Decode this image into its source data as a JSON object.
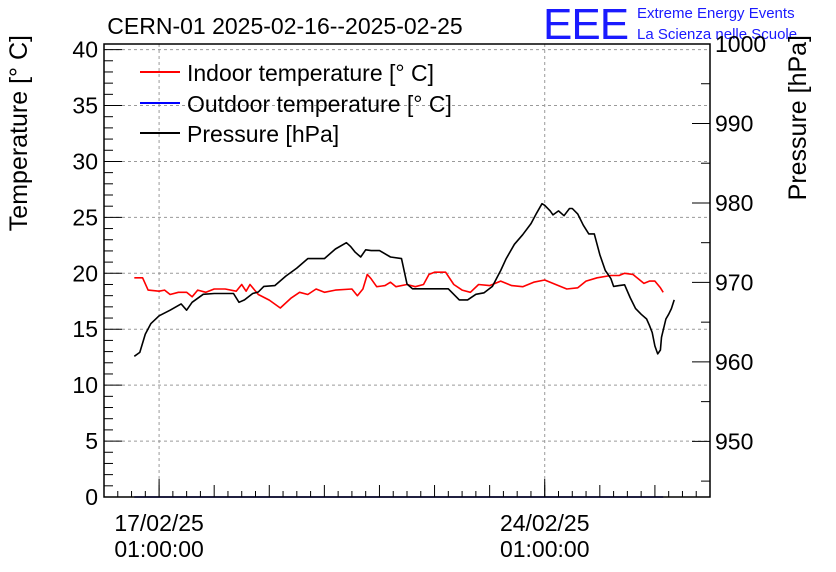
{
  "branding": {
    "logo_text": "EEE",
    "line1": "Extreme Energy Events",
    "line2": "La Scienza nelle Scuole",
    "color": "#1a1aff"
  },
  "chart_data": {
    "type": "line",
    "title": "CERN-01 2025-02-16--2025-02-25",
    "ylabel": "Temperature [° C]",
    "y2label": "Pressure [hPa]",
    "x_range_days": [
      -1.0,
      10.0
    ],
    "x_ticks": [
      {
        "day": 0,
        "label_date": "17/02/25",
        "label_time": "01:00:00"
      },
      {
        "day": 7,
        "label_date": "24/02/25",
        "label_time": "01:00:00"
      }
    ],
    "ylim": [
      0,
      40.5
    ],
    "y_ticks": [
      0,
      5,
      10,
      15,
      20,
      25,
      30,
      35,
      40
    ],
    "y2lim": [
      943,
      1000
    ],
    "y2_ticks": [
      950,
      960,
      970,
      980,
      990,
      1000
    ],
    "grid": true,
    "legend": {
      "position": "top-left"
    },
    "series": [
      {
        "name": "Indoor temperature [° C]",
        "axis": "left",
        "color": "#ff0000",
        "points": [
          [
            -0.45,
            19.6
          ],
          [
            -0.3,
            19.6
          ],
          [
            -0.2,
            18.5
          ],
          [
            0.0,
            18.4
          ],
          [
            0.1,
            18.5
          ],
          [
            0.2,
            18.1
          ],
          [
            0.35,
            18.3
          ],
          [
            0.5,
            18.3
          ],
          [
            0.6,
            17.9
          ],
          [
            0.7,
            18.5
          ],
          [
            0.85,
            18.3
          ],
          [
            1.0,
            18.6
          ],
          [
            1.2,
            18.6
          ],
          [
            1.4,
            18.4
          ],
          [
            1.5,
            19.0
          ],
          [
            1.58,
            18.4
          ],
          [
            1.65,
            19.0
          ],
          [
            1.8,
            18.1
          ],
          [
            2.0,
            17.6
          ],
          [
            2.2,
            16.9
          ],
          [
            2.4,
            17.8
          ],
          [
            2.55,
            18.3
          ],
          [
            2.7,
            18.1
          ],
          [
            2.85,
            18.6
          ],
          [
            3.0,
            18.3
          ],
          [
            3.2,
            18.5
          ],
          [
            3.5,
            18.6
          ],
          [
            3.6,
            18.0
          ],
          [
            3.7,
            18.6
          ],
          [
            3.78,
            19.9
          ],
          [
            3.85,
            19.5
          ],
          [
            3.95,
            18.8
          ],
          [
            4.1,
            18.9
          ],
          [
            4.2,
            19.2
          ],
          [
            4.3,
            18.8
          ],
          [
            4.5,
            19.0
          ],
          [
            4.65,
            18.8
          ],
          [
            4.8,
            19.0
          ],
          [
            4.9,
            19.9
          ],
          [
            5.0,
            20.1
          ],
          [
            5.2,
            20.1
          ],
          [
            5.35,
            19.0
          ],
          [
            5.5,
            18.5
          ],
          [
            5.65,
            18.3
          ],
          [
            5.8,
            19.0
          ],
          [
            6.0,
            18.9
          ],
          [
            6.2,
            19.3
          ],
          [
            6.4,
            18.9
          ],
          [
            6.6,
            18.8
          ],
          [
            6.8,
            19.2
          ],
          [
            7.0,
            19.4
          ],
          [
            7.2,
            19.0
          ],
          [
            7.4,
            18.6
          ],
          [
            7.6,
            18.7
          ],
          [
            7.75,
            19.3
          ],
          [
            7.95,
            19.6
          ],
          [
            8.2,
            19.8
          ],
          [
            8.35,
            19.8
          ],
          [
            8.45,
            20.0
          ],
          [
            8.6,
            19.9
          ],
          [
            8.7,
            19.5
          ],
          [
            8.8,
            19.1
          ],
          [
            8.9,
            19.3
          ],
          [
            9.0,
            19.3
          ],
          [
            9.1,
            18.7
          ],
          [
            9.15,
            18.3
          ]
        ]
      },
      {
        "name": "Outdoor temperature [° C]",
        "axis": "left",
        "color": "#0000ff",
        "points": [
          [
            -0.45,
            0.0
          ],
          [
            9.15,
            0.0
          ]
        ]
      },
      {
        "name": "Pressure [hPa]",
        "axis": "right",
        "color": "#000000",
        "points": [
          [
            -0.45,
            960.7
          ],
          [
            -0.35,
            961.2
          ],
          [
            -0.25,
            963.5
          ],
          [
            -0.15,
            964.8
          ],
          [
            0.0,
            965.8
          ],
          [
            0.2,
            966.5
          ],
          [
            0.4,
            967.3
          ],
          [
            0.5,
            966.5
          ],
          [
            0.6,
            967.5
          ],
          [
            0.8,
            968.5
          ],
          [
            1.0,
            968.6
          ],
          [
            1.2,
            968.6
          ],
          [
            1.35,
            968.6
          ],
          [
            1.45,
            967.5
          ],
          [
            1.55,
            967.8
          ],
          [
            1.7,
            968.6
          ],
          [
            1.8,
            968.8
          ],
          [
            1.9,
            969.5
          ],
          [
            2.1,
            969.6
          ],
          [
            2.3,
            970.8
          ],
          [
            2.5,
            971.8
          ],
          [
            2.7,
            973.0
          ],
          [
            3.0,
            973.0
          ],
          [
            3.2,
            974.2
          ],
          [
            3.4,
            975.0
          ],
          [
            3.48,
            974.5
          ],
          [
            3.56,
            973.8
          ],
          [
            3.66,
            973.2
          ],
          [
            3.75,
            974.1
          ],
          [
            3.85,
            974.0
          ],
          [
            4.0,
            974.0
          ],
          [
            4.2,
            973.2
          ],
          [
            4.4,
            973.0
          ],
          [
            4.5,
            969.8
          ],
          [
            4.6,
            969.2
          ],
          [
            4.8,
            969.2
          ],
          [
            5.0,
            969.2
          ],
          [
            5.25,
            969.2
          ],
          [
            5.45,
            967.8
          ],
          [
            5.6,
            967.8
          ],
          [
            5.75,
            968.5
          ],
          [
            5.9,
            968.7
          ],
          [
            6.05,
            969.5
          ],
          [
            6.2,
            971.5
          ],
          [
            6.3,
            973.0
          ],
          [
            6.45,
            974.8
          ],
          [
            6.6,
            976.0
          ],
          [
            6.75,
            977.4
          ],
          [
            6.85,
            978.7
          ],
          [
            6.95,
            979.9
          ],
          [
            7.0,
            979.7
          ],
          [
            7.1,
            979.0
          ],
          [
            7.15,
            978.5
          ],
          [
            7.25,
            979.0
          ],
          [
            7.35,
            978.4
          ],
          [
            7.45,
            979.3
          ],
          [
            7.5,
            979.3
          ],
          [
            7.6,
            978.6
          ],
          [
            7.7,
            977.2
          ],
          [
            7.8,
            976.1
          ],
          [
            7.9,
            976.1
          ],
          [
            8.0,
            973.5
          ],
          [
            8.1,
            971.5
          ],
          [
            8.2,
            970.5
          ],
          [
            8.25,
            969.5
          ],
          [
            8.35,
            969.6
          ],
          [
            8.45,
            969.7
          ],
          [
            8.55,
            968.1
          ],
          [
            8.65,
            966.7
          ],
          [
            8.75,
            966.0
          ],
          [
            8.85,
            965.4
          ],
          [
            8.9,
            964.6
          ],
          [
            8.95,
            963.7
          ],
          [
            9.0,
            962.0
          ],
          [
            9.05,
            961.0
          ],
          [
            9.1,
            961.5
          ],
          [
            9.12,
            963.1
          ],
          [
            9.2,
            965.4
          ],
          [
            9.25,
            966.0
          ],
          [
            9.3,
            966.7
          ],
          [
            9.35,
            967.8
          ]
        ]
      }
    ]
  }
}
